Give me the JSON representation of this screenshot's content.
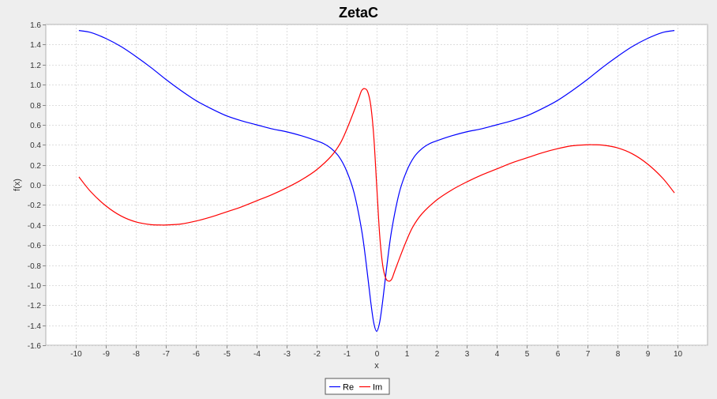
{
  "chart_data": {
    "type": "line",
    "title": "ZetaC",
    "xlabel": "x",
    "ylabel": "f(x)",
    "xlim": [
      -11,
      11
    ],
    "ylim": [
      -1.6,
      1.6
    ],
    "xticks": [
      -10,
      -9,
      -8,
      -7,
      -6,
      -5,
      -4,
      -3,
      -2,
      -1,
      0,
      1,
      2,
      3,
      4,
      5,
      6,
      7,
      8,
      9,
      10
    ],
    "yticks": [
      1.6,
      1.4,
      1.2,
      1.0,
      0.8,
      0.6,
      0.4,
      0.2,
      0.0,
      -0.2,
      -0.4,
      -0.6,
      -0.8,
      -1.0,
      -1.2,
      -1.4,
      -1.6
    ],
    "xtick_labels": [
      "-10",
      "-9",
      "-8",
      "-7",
      "-6",
      "-5",
      "-4",
      "-3",
      "-2",
      "-1",
      "0",
      "1",
      "2",
      "3",
      "4",
      "5",
      "6",
      "7",
      "8",
      "9",
      "10"
    ],
    "ytick_labels": [
      "1.6",
      "1.4",
      "1.2",
      "1.0",
      "0.8",
      "0.6",
      "0.4",
      "0.2",
      "0.0",
      "-0.2",
      "-0.4",
      "-0.6",
      "-0.8",
      "-1.0",
      "-1.2",
      "-1.4",
      "-1.6"
    ],
    "grid": true,
    "legend_position": "bottom",
    "series": [
      {
        "name": "Re",
        "color": "#0000ff",
        "x": [
          -9.9,
          -9.5,
          -9,
          -8.5,
          -8,
          -7.5,
          -7,
          -6.5,
          -6,
          -5.5,
          -5,
          -4.5,
          -4,
          -3.5,
          -3,
          -2.5,
          -2,
          -1.75,
          -1.5,
          -1.25,
          -1,
          -0.75,
          -0.5,
          -0.35,
          -0.2,
          -0.1,
          0,
          0.1,
          0.2,
          0.35,
          0.5,
          0.75,
          1,
          1.25,
          1.5,
          1.75,
          2,
          2.5,
          3,
          3.5,
          4,
          4.5,
          5,
          5.5,
          6,
          6.5,
          7,
          7.5,
          8,
          8.5,
          9,
          9.5,
          9.9
        ],
        "y": [
          1.54,
          1.52,
          1.46,
          1.38,
          1.28,
          1.17,
          1.05,
          0.94,
          0.84,
          0.76,
          0.69,
          0.64,
          0.6,
          0.56,
          0.53,
          0.49,
          0.44,
          0.41,
          0.36,
          0.28,
          0.14,
          -0.08,
          -0.45,
          -0.78,
          -1.16,
          -1.37,
          -1.46,
          -1.37,
          -1.16,
          -0.78,
          -0.45,
          -0.08,
          0.14,
          0.28,
          0.36,
          0.41,
          0.44,
          0.49,
          0.53,
          0.56,
          0.6,
          0.64,
          0.69,
          0.76,
          0.84,
          0.94,
          1.05,
          1.17,
          1.28,
          1.38,
          1.46,
          1.52,
          1.54
        ]
      },
      {
        "name": "Im",
        "color": "#ff0000",
        "x": [
          -9.9,
          -9.5,
          -9,
          -8.5,
          -8,
          -7.5,
          -7.2,
          -7,
          -6.5,
          -6,
          -5.5,
          -5,
          -4.5,
          -4,
          -3.5,
          -3,
          -2.5,
          -2,
          -1.5,
          -1.2,
          -1,
          -0.8,
          -0.6,
          -0.5,
          -0.4,
          -0.3,
          -0.2,
          -0.1,
          0,
          0.1,
          0.2,
          0.3,
          0.4,
          0.5,
          0.6,
          0.8,
          1,
          1.2,
          1.5,
          2,
          2.5,
          3,
          3.5,
          4,
          4.5,
          5,
          5.5,
          6,
          6.5,
          7,
          7.2,
          7.5,
          8,
          8.5,
          9,
          9.5,
          9.9
        ],
        "y": [
          0.08,
          -0.07,
          -0.21,
          -0.31,
          -0.37,
          -0.397,
          -0.4,
          -0.4,
          -0.39,
          -0.36,
          -0.32,
          -0.27,
          -0.22,
          -0.16,
          -0.1,
          -0.03,
          0.05,
          0.15,
          0.29,
          0.42,
          0.55,
          0.7,
          0.86,
          0.94,
          0.96,
          0.93,
          0.8,
          0.5,
          0.0,
          -0.5,
          -0.8,
          -0.93,
          -0.96,
          -0.94,
          -0.86,
          -0.7,
          -0.55,
          -0.42,
          -0.29,
          -0.15,
          -0.05,
          0.03,
          0.1,
          0.16,
          0.22,
          0.27,
          0.32,
          0.36,
          0.39,
          0.4,
          0.4,
          0.397,
          0.37,
          0.31,
          0.21,
          0.07,
          -0.08
        ]
      }
    ]
  }
}
